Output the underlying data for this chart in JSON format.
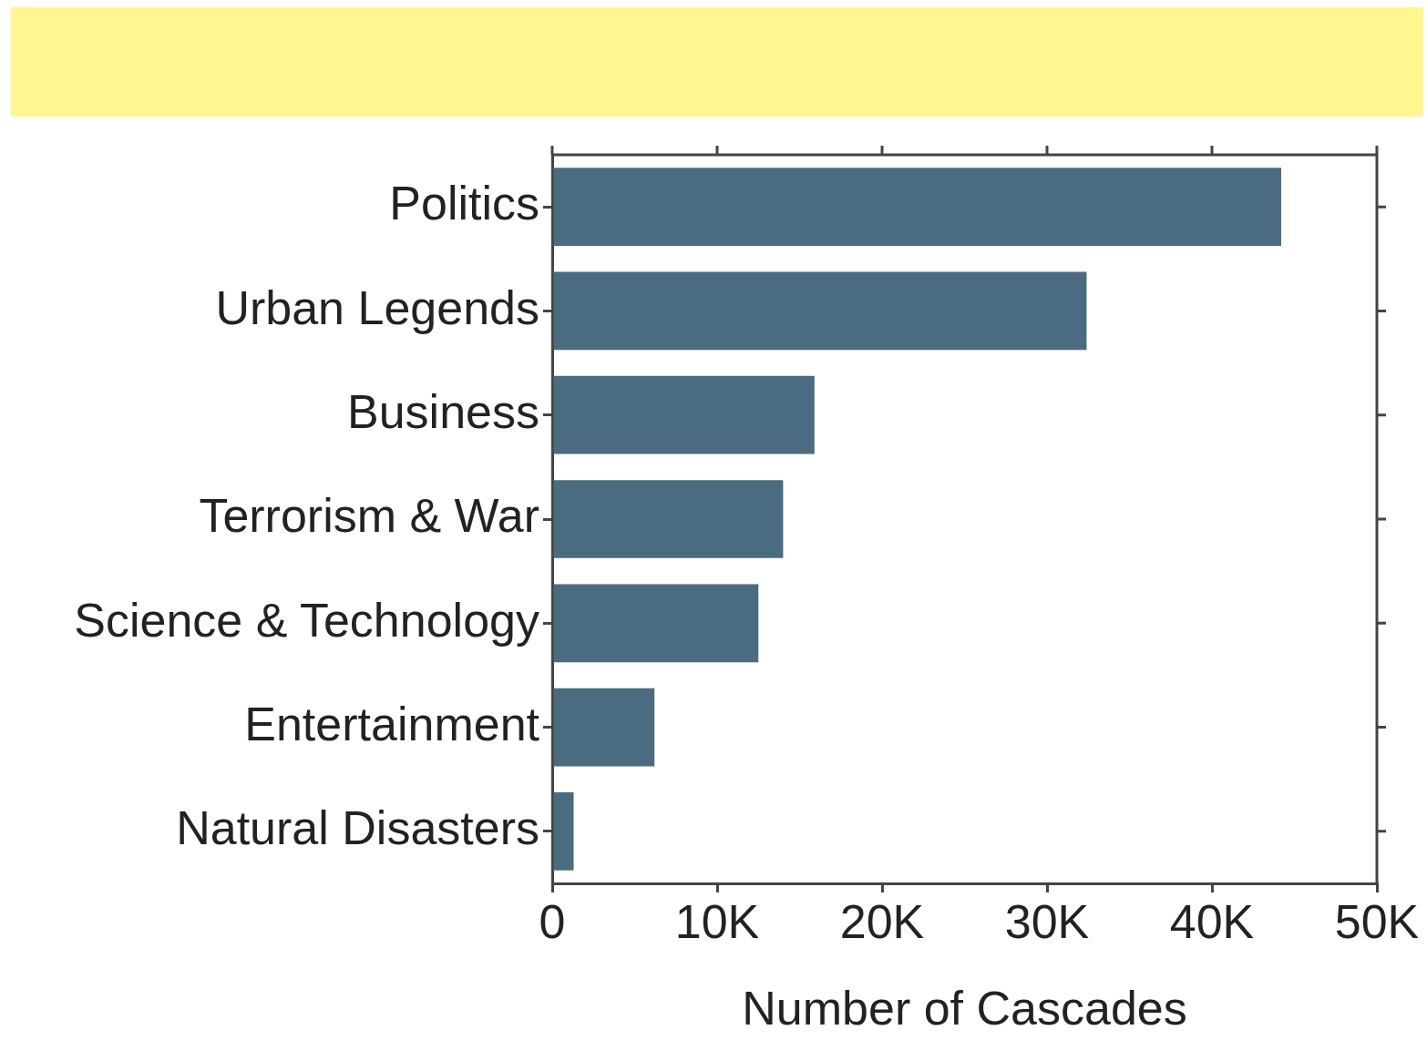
{
  "chart_data": {
    "type": "bar",
    "orientation": "horizontal",
    "categories": [
      "Politics",
      "Urban Legends",
      "Business",
      "Terrorism & War",
      "Science & Technology",
      "Entertainment",
      "Natural Disasters"
    ],
    "values": [
      44200,
      32400,
      15900,
      14000,
      12500,
      6200,
      1300
    ],
    "color": "#4a6b80",
    "xlabel": "Number of Cascades",
    "xlim": [
      0,
      50000
    ],
    "xticks": [
      0,
      {
        "value": 10000,
        "label": "10K"
      },
      {
        "value": 20000,
        "label": "20K"
      },
      {
        "value": 30000,
        "label": "30K"
      },
      {
        "value": 40000,
        "label": "40K"
      },
      {
        "value": 50000,
        "label": "50K"
      }
    ],
    "grid": false,
    "legend": false
  }
}
